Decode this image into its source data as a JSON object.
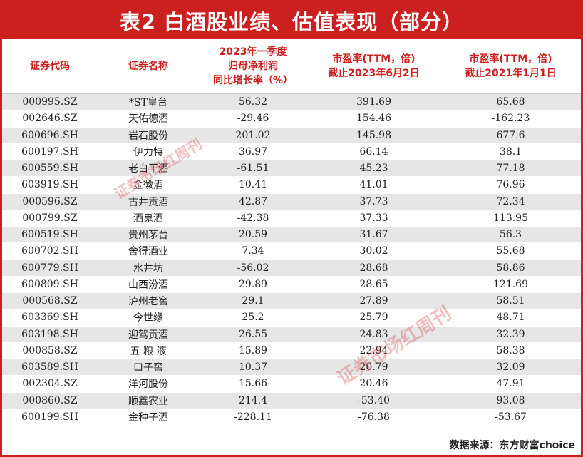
{
  "title": "表2 白酒股业绩、估值表现（部分）",
  "headers": {
    "code": "证券代码",
    "name": "证券名称",
    "growth": [
      "2023年一季度",
      "归母净利润",
      "同比增长率（%）"
    ],
    "pe2023": [
      "市盈率(TTM，倍)",
      "截止2023年6月2日"
    ],
    "pe2021": [
      "市盈率(TTM，倍)",
      "截止2021年1月1日"
    ]
  },
  "rows": [
    {
      "code": "000995.SZ",
      "name": "*ST皇台",
      "growth": "56.32",
      "pe2023": "391.69",
      "pe2021": "65.68"
    },
    {
      "code": "002646.SZ",
      "name": "天佑德酒",
      "growth": "-29.46",
      "pe2023": "154.46",
      "pe2021": "-162.23"
    },
    {
      "code": "600696.SH",
      "name": "岩石股份",
      "growth": "201.02",
      "pe2023": "145.98",
      "pe2021": "677.6"
    },
    {
      "code": "600197.SH",
      "name": "伊力特",
      "growth": "36.97",
      "pe2023": "66.14",
      "pe2021": "38.1"
    },
    {
      "code": "600559.SH",
      "name": "老白干酒",
      "growth": "-61.51",
      "pe2023": "45.23",
      "pe2021": "77.18"
    },
    {
      "code": "603919.SH",
      "name": "金徽酒",
      "growth": "10.41",
      "pe2023": "41.01",
      "pe2021": "76.96"
    },
    {
      "code": "000596.SZ",
      "name": "古井贡酒",
      "growth": "42.87",
      "pe2023": "37.73",
      "pe2021": "72.34"
    },
    {
      "code": "000799.SZ",
      "name": "酒鬼酒",
      "growth": "-42.38",
      "pe2023": "37.33",
      "pe2021": "113.95"
    },
    {
      "code": "600519.SH",
      "name": "贵州茅台",
      "growth": "20.59",
      "pe2023": "31.67",
      "pe2021": "56.3"
    },
    {
      "code": "600702.SH",
      "name": "舍得酒业",
      "growth": "7.34",
      "pe2023": "30.02",
      "pe2021": "55.68"
    },
    {
      "code": "600779.SH",
      "name": "水井坊",
      "growth": "-56.02",
      "pe2023": "28.68",
      "pe2021": "58.86"
    },
    {
      "code": "600809.SH",
      "name": "山西汾酒",
      "growth": "29.89",
      "pe2023": "28.65",
      "pe2021": "121.69"
    },
    {
      "code": "000568.SZ",
      "name": "泸州老窖",
      "growth": "29.1",
      "pe2023": "27.89",
      "pe2021": "58.51"
    },
    {
      "code": "603369.SH",
      "name": "今世缘",
      "growth": "25.2",
      "pe2023": "25.79",
      "pe2021": "48.71"
    },
    {
      "code": "603198.SH",
      "name": "迎驾贡酒",
      "growth": "26.55",
      "pe2023": "24.83",
      "pe2021": "32.39"
    },
    {
      "code": "000858.SZ",
      "name": "五 粮 液",
      "growth": "15.89",
      "pe2023": "22.94",
      "pe2021": "58.38"
    },
    {
      "code": "603589.SH",
      "name": "口子窖",
      "growth": "10.37",
      "pe2023": "20.79",
      "pe2021": "32.09"
    },
    {
      "code": "002304.SZ",
      "name": "洋河股份",
      "growth": "15.66",
      "pe2023": "20.46",
      "pe2021": "47.91"
    },
    {
      "code": "000860.SZ",
      "name": "顺鑫农业",
      "growth": "214.4",
      "pe2023": "-53.40",
      "pe2021": "93.08"
    },
    {
      "code": "600199.SH",
      "name": "金种子酒",
      "growth": "-228.11",
      "pe2023": "-76.38",
      "pe2021": "-53.67"
    }
  ],
  "source": "数据来源：东方财富choice",
  "watermark": "证券市场红周刊",
  "colors": {
    "accent": "#cc1f1f",
    "stripe": "#e6e6e6"
  }
}
